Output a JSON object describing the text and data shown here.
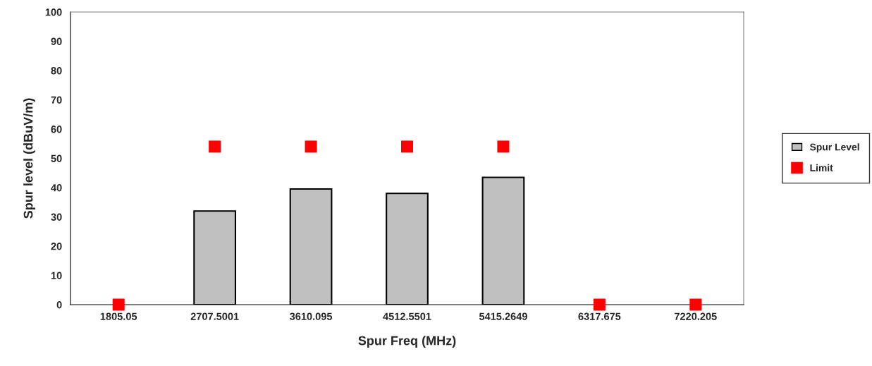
{
  "chart_data": {
    "type": "bar",
    "xlabel": "Spur Freq (MHz)",
    "ylabel": "Spur level (dBuV/m)",
    "categories": [
      "1805.05",
      "2707.5001",
      "3610.095",
      "4512.5501",
      "5415.2649",
      "6317.675",
      "7220.205"
    ],
    "series": [
      {
        "name": "Spur Level",
        "color": "#c0c0c0",
        "values": [
          null,
          32,
          39.5,
          38,
          43.5,
          null,
          null
        ]
      },
      {
        "name": "Limit",
        "type": "scatter",
        "marker": "square",
        "color": "#ff0000",
        "values": [
          0,
          54,
          54,
          54,
          54,
          0,
          0
        ]
      }
    ],
    "ylim": [
      0,
      100
    ],
    "yticks": [
      0,
      10,
      20,
      30,
      40,
      50,
      60,
      70,
      80,
      90,
      100
    ],
    "grid": false,
    "legend": "right"
  }
}
